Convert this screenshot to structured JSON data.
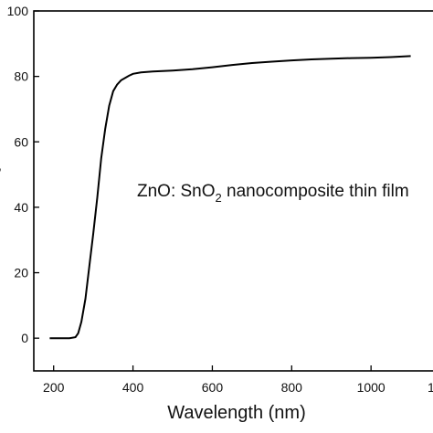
{
  "chart_data": {
    "type": "line",
    "xlabel": "Wavelength (nm)",
    "ylabel": "",
    "xlim": [
      150,
      1170
    ],
    "ylim": [
      -10,
      100
    ],
    "x_ticks": [
      200,
      400,
      600,
      800,
      1000
    ],
    "x_tick_labels": [
      "200",
      "400",
      "600",
      "800",
      "1000"
    ],
    "x_tick_clipped_label": "1",
    "y_ticks": [
      0,
      20,
      40,
      60,
      80,
      100
    ],
    "y_tick_labels": [
      "0",
      "20",
      "40",
      "60",
      "80",
      "100"
    ],
    "y_label_fragment": ",",
    "grid": false,
    "legend": "none",
    "annotation": {
      "main": "ZnO: SnO",
      "subscript": "2",
      "rest": " nanocomposite thin film"
    },
    "series": [
      {
        "color": "#000000",
        "x": [
          190,
          200,
          220,
          240,
          255,
          262,
          270,
          280,
          290,
          300,
          310,
          320,
          330,
          340,
          350,
          360,
          370,
          380,
          390,
          400,
          420,
          450,
          500,
          550,
          600,
          650,
          700,
          750,
          800,
          850,
          900,
          950,
          1000,
          1050,
          1100
        ],
        "y": [
          0,
          0,
          0,
          0,
          0.3,
          1.5,
          5,
          12,
          22,
          32,
          43,
          55,
          64,
          71,
          75.5,
          77.5,
          78.8,
          79.5,
          80.2,
          80.8,
          81.2,
          81.5,
          81.8,
          82.2,
          82.8,
          83.5,
          84.1,
          84.5,
          84.9,
          85.2,
          85.4,
          85.6,
          85.7,
          85.9,
          86.2
        ]
      }
    ]
  }
}
